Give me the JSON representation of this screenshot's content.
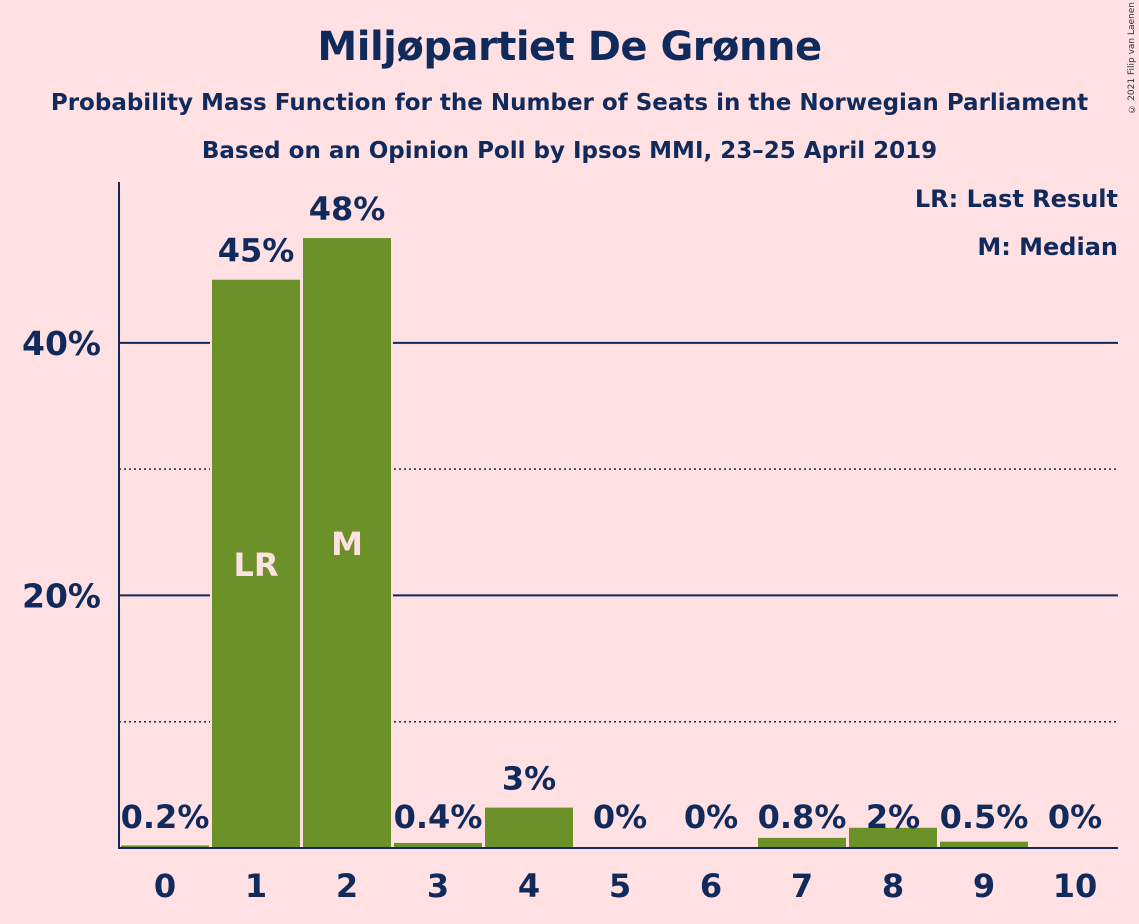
{
  "title": "Miljøpartiet De Grønne",
  "subtitle1": "Probability Mass Function for the Number of Seats in the Norwegian Parliament",
  "subtitle2": "Based on an Opinion Poll by Ipsos MMI, 23–25 April 2019",
  "copyright": "© 2021 Filip van Laenen",
  "legend": {
    "last_result": "LR: Last Result",
    "median": "M: Median"
  },
  "colors": {
    "background": "#FFE0E3",
    "bar": "#6B9128",
    "text": "#102A5C",
    "marker_text": "#FFE0E3"
  },
  "chart_data": {
    "type": "bar",
    "categories": [
      "0",
      "1",
      "2",
      "3",
      "4",
      "5",
      "6",
      "7",
      "8",
      "9",
      "10"
    ],
    "values": [
      0.2,
      45,
      48.3,
      0.4,
      3.2,
      0,
      0,
      0.8,
      1.6,
      0.5,
      0
    ],
    "value_labels": [
      "0.2%",
      "45%",
      "48%",
      "0.4%",
      "3%",
      "0%",
      "0%",
      "0.8%",
      "2%",
      "0.5%",
      "0%"
    ],
    "bar_markers": [
      {
        "category": "1",
        "label": "LR"
      },
      {
        "category": "2",
        "label": "M"
      }
    ],
    "y_ticks": [
      {
        "value": 20,
        "label": "20%"
      },
      {
        "value": 40,
        "label": "40%"
      }
    ],
    "y_minor_gridlines": [
      10,
      30
    ],
    "ylim": [
      0,
      52.5
    ],
    "xlabel": "",
    "ylabel": "",
    "grid": true
  }
}
